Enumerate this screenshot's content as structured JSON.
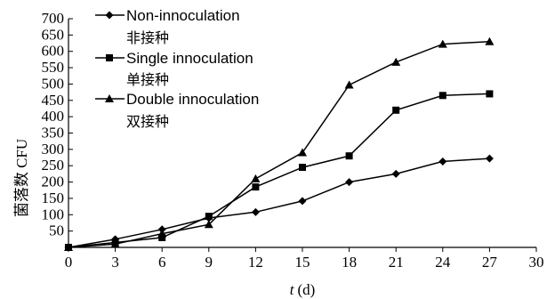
{
  "chart_data": {
    "type": "line",
    "xlabel_italic": "t",
    "xlabel_unit": "(d)",
    "ylabel": "菌落数 CFU",
    "xlim": [
      0,
      30
    ],
    "ylim": [
      0,
      700
    ],
    "x_ticks": [
      0,
      3,
      6,
      9,
      12,
      15,
      18,
      21,
      24,
      27,
      30
    ],
    "y_ticks": [
      50,
      100,
      150,
      200,
      250,
      300,
      350,
      400,
      450,
      500,
      550,
      600,
      650,
      700
    ],
    "grid": false,
    "legend_position": "top-left",
    "x": [
      0,
      3,
      6,
      9,
      12,
      15,
      18,
      21,
      24,
      27
    ],
    "series": [
      {
        "name": "Non-innoculation",
        "name_cn": "非接种",
        "marker": "diamond",
        "values": [
          0,
          25,
          55,
          90,
          108,
          142,
          200,
          225,
          263,
          272
        ]
      },
      {
        "name": "Single innoculation",
        "name_cn": "单接种",
        "marker": "square",
        "values": [
          0,
          15,
          30,
          95,
          185,
          245,
          280,
          420,
          465,
          470
        ]
      },
      {
        "name": "Double innoculation",
        "name_cn": "双接种",
        "marker": "triangle",
        "values": [
          0,
          10,
          42,
          70,
          210,
          290,
          497,
          567,
          622,
          630
        ]
      }
    ],
    "colors": {
      "line": "#000000",
      "marker": "#000000"
    }
  }
}
